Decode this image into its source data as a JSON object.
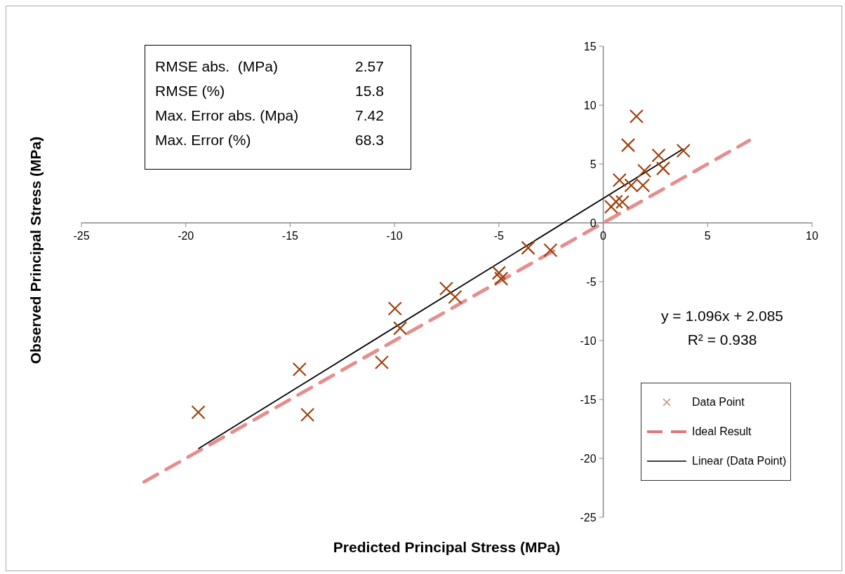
{
  "chart_data": {
    "type": "scatter",
    "xlabel": "Predicted Principal Stress (MPa)",
    "ylabel": "Observed Principal Stress (MPa)",
    "xlim": [
      -25,
      10
    ],
    "xticks": [
      -25,
      -20,
      -15,
      -10,
      -5,
      0,
      5,
      10
    ],
    "ylim": [
      -25,
      15
    ],
    "yticks": [
      -25,
      -20,
      -15,
      -10,
      -5,
      0,
      5,
      10,
      15
    ],
    "grid": false,
    "legend": "bottom right",
    "annotations": [
      "RMSE abs.  (MPa)",
      "2.57",
      "RMSE (%)",
      "15.8",
      "Max. Error abs. (Mpa)",
      "7.42",
      "Max. Error (%)",
      "68.3",
      "y = 1.096x + 2.085",
      "R² = 0.938"
    ],
    "series": [
      {
        "name": "Data Point",
        "marker": "cross",
        "color": "#a0410d",
        "x": [
          1.59,
          1.19,
          2.65,
          3.84,
          1.97,
          2.87,
          0.78,
          1.34,
          1.9,
          0.38,
          0.61,
          0.92,
          -3.6,
          -2.53,
          -5.0,
          -4.89,
          -7.52,
          -7.1,
          -9.98,
          -9.73,
          -19.4,
          -14.55,
          -14.17,
          -10.61
        ],
        "values": [
          9.05,
          6.6,
          5.73,
          6.13,
          4.42,
          4.62,
          3.63,
          3.19,
          3.19,
          1.37,
          1.8,
          1.77,
          -2.12,
          -2.32,
          -4.25,
          -4.74,
          -5.58,
          -6.29,
          -7.28,
          -8.95,
          -16.09,
          -12.44,
          -16.29,
          -11.85
        ]
      },
      {
        "name": "Ideal Result",
        "type": "line",
        "marker": "none",
        "line_style": "dashed",
        "color": "#e07a7a",
        "x": [
          -22,
          7
        ],
        "values": [
          -22,
          7
        ]
      },
      {
        "name": "Linear (Data Point)",
        "type": "line",
        "marker": "none",
        "line_style": "solid",
        "color": "#000000",
        "x": [
          -19.4,
          3.84
        ],
        "values": [
          -19.18,
          6.29
        ]
      }
    ]
  }
}
